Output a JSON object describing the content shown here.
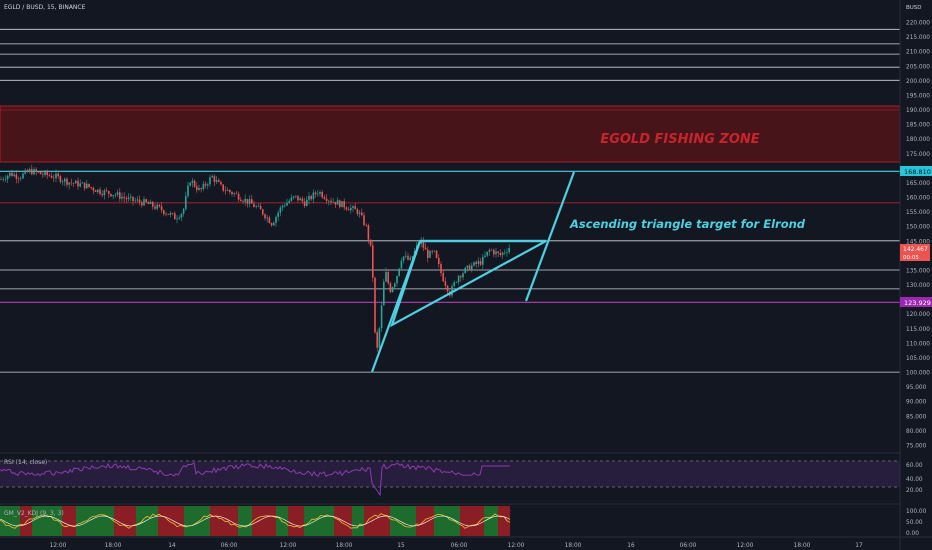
{
  "header": {
    "symbol_title": "EGLD / BUSD, 15, BINANCE"
  },
  "axis": {
    "currency": "BUSD",
    "price_ticks": [
      "220.000",
      "215.000",
      "210.000",
      "205.000",
      "200.000",
      "195.000",
      "190.000",
      "185.000",
      "180.000",
      "175.000",
      "170.000",
      "165.000",
      "160.000",
      "155.000",
      "150.000",
      "145.000",
      "140.000",
      "135.000",
      "130.000",
      "125.000",
      "120.000",
      "115.000",
      "110.000",
      "105.000",
      "100.000",
      "95.000",
      "90.000",
      "85.000",
      "80.000",
      "75.000"
    ],
    "price_tick_values": [
      220,
      215,
      210,
      205,
      200,
      195,
      190,
      185,
      180,
      175,
      170,
      165,
      160,
      155,
      150,
      145,
      140,
      135,
      130,
      125,
      120,
      115,
      110,
      105,
      100,
      95,
      90,
      85,
      80,
      75
    ],
    "time_labels": [
      "12:00",
      "18:00",
      "14",
      "06:00",
      "12:00",
      "18:00",
      "15",
      "06:00",
      "12:00",
      "18:00",
      "16",
      "06:00",
      "12:00",
      "18:00",
      "17"
    ],
    "rsi_ticks": [
      "60.00",
      "40.00",
      "20.00"
    ],
    "gm_ticks": [
      "100.00",
      "50.00",
      "0.00"
    ]
  },
  "price_labels": {
    "resistance": "168.810",
    "current": "142.467",
    "current_sub": "00:05",
    "support": "123.929"
  },
  "annotations": {
    "zone_label": "EGOLD FISHING ZONE",
    "triangle_label": "Ascending triangle target for Elrond"
  },
  "indicators": {
    "rsi_label": "RSI (14, close)",
    "gm_label": "GM_V2_KDJ (9, 3, 3)"
  },
  "colors": {
    "background": "#131722",
    "zone_fill": "#5a1418",
    "zone_text": "#c8242c",
    "cyan": "#4dd0e1",
    "magenta": "#b33fb3",
    "up_candle": "#26a69a",
    "down_candle": "#ef5350",
    "rsi_line": "#8e3ab3",
    "rsi_band": "#2a1e3f"
  },
  "chart_data": {
    "type": "candlestick",
    "symbol": "EGLD / BUSD",
    "timeframe": "15",
    "exchange": "BINANCE",
    "horizontal_levels": [
      217.5,
      212.5,
      209.0,
      204.5,
      200.0,
      168.81,
      158.0,
      145.0,
      135.0,
      128.5,
      123.929,
      100.0
    ],
    "zone": {
      "from": 172.0,
      "to": 191.0,
      "label": "EGOLD FISHING ZONE"
    },
    "price_path": [
      [
        0,
        166
      ],
      [
        10,
        168
      ],
      [
        20,
        167
      ],
      [
        30,
        169
      ],
      [
        40,
        168
      ],
      [
        55,
        167
      ],
      [
        70,
        165
      ],
      [
        85,
        164
      ],
      [
        100,
        162
      ],
      [
        115,
        161
      ],
      [
        130,
        159
      ],
      [
        145,
        158
      ],
      [
        160,
        156
      ],
      [
        175,
        153
      ],
      [
        183,
        155
      ],
      [
        190,
        166
      ],
      [
        200,
        162
      ],
      [
        212,
        167
      ],
      [
        222,
        163
      ],
      [
        235,
        161
      ],
      [
        250,
        158
      ],
      [
        262,
        155
      ],
      [
        272,
        151
      ],
      [
        282,
        157
      ],
      [
        295,
        160
      ],
      [
        305,
        158
      ],
      [
        318,
        162
      ],
      [
        330,
        159
      ],
      [
        345,
        157
      ],
      [
        358,
        155
      ],
      [
        366,
        150
      ],
      [
        372,
        140
      ],
      [
        376,
        104
      ],
      [
        381,
        120
      ],
      [
        385,
        135
      ],
      [
        390,
        128
      ],
      [
        396,
        132
      ],
      [
        402,
        140
      ],
      [
        410,
        138
      ],
      [
        420,
        145
      ],
      [
        428,
        140
      ],
      [
        434,
        141
      ],
      [
        442,
        133
      ],
      [
        450,
        127
      ],
      [
        458,
        133
      ],
      [
        470,
        136
      ],
      [
        482,
        138
      ],
      [
        490,
        142
      ],
      [
        500,
        140
      ],
      [
        510,
        143
      ]
    ],
    "current_price": 142.467
  }
}
